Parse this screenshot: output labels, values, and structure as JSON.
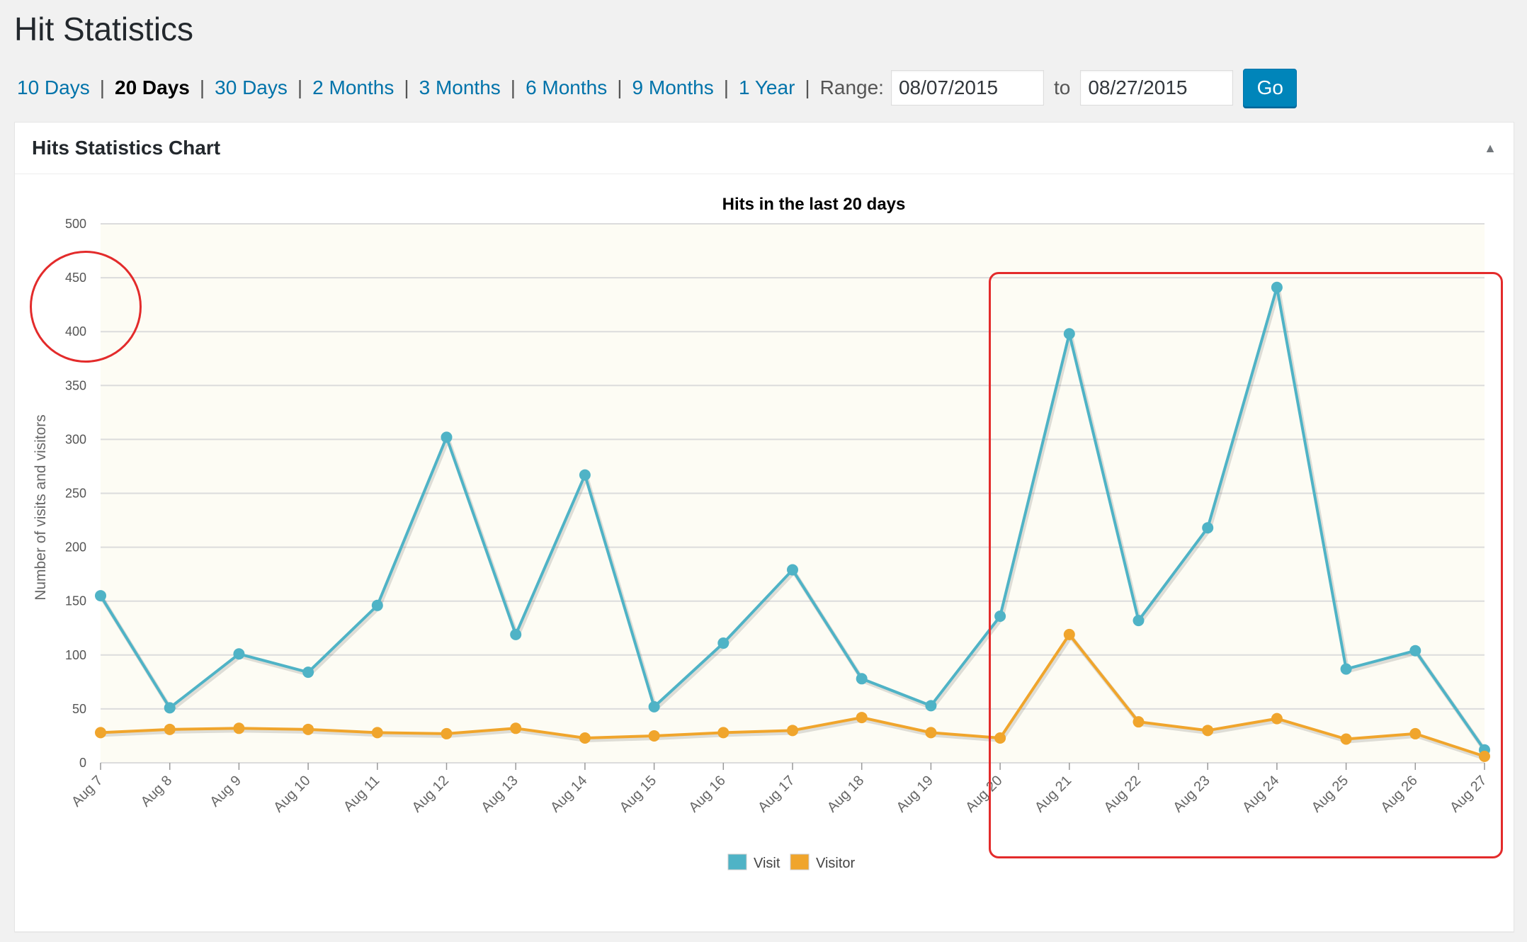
{
  "page": {
    "title": "Hit Statistics"
  },
  "range_links": [
    {
      "label": "10 Days",
      "current": false
    },
    {
      "label": "20 Days",
      "current": true
    },
    {
      "label": "30 Days",
      "current": false
    },
    {
      "label": "2 Months",
      "current": false
    },
    {
      "label": "3 Months",
      "current": false
    },
    {
      "label": "6 Months",
      "current": false
    },
    {
      "label": "9 Months",
      "current": false
    },
    {
      "label": "1 Year",
      "current": false
    }
  ],
  "range_form": {
    "label": "Range:",
    "from": "08/07/2015",
    "to_label": "to",
    "to": "08/27/2015",
    "go_label": "Go"
  },
  "postbox": {
    "title": "Hits Statistics Chart",
    "toggle_icon": "triangle-up-icon"
  },
  "chart_data": {
    "type": "line",
    "title": "Hits in the last 20 days",
    "xlabel": "",
    "ylabel": "Number of visits and visitors",
    "ylim": [
      0,
      500
    ],
    "yticks": [
      "0",
      "50",
      "100",
      "150",
      "200",
      "250",
      "300",
      "350",
      "400",
      "450",
      "500"
    ],
    "grid": true,
    "legend": "bottom",
    "categories": [
      "Aug 7",
      "Aug 8",
      "Aug 9",
      "Aug 10",
      "Aug 11",
      "Aug 12",
      "Aug 13",
      "Aug 14",
      "Aug 15",
      "Aug 16",
      "Aug 17",
      "Aug 18",
      "Aug 19",
      "Aug 20",
      "Aug 21",
      "Aug 22",
      "Aug 23",
      "Aug 24",
      "Aug 25",
      "Aug 26",
      "Aug 27"
    ],
    "series": [
      {
        "name": "Visit",
        "color": "#4fb3c6",
        "values": [
          155,
          51,
          101,
          84,
          146,
          302,
          119,
          267,
          52,
          111,
          179,
          78,
          53,
          136,
          398,
          132,
          218,
          441,
          87,
          104,
          12
        ]
      },
      {
        "name": "Visitor",
        "color": "#f0a52c",
        "values": [
          28,
          31,
          32,
          31,
          28,
          27,
          32,
          23,
          25,
          28,
          30,
          42,
          28,
          23,
          119,
          38,
          30,
          41,
          22,
          27,
          6
        ]
      }
    ]
  }
}
